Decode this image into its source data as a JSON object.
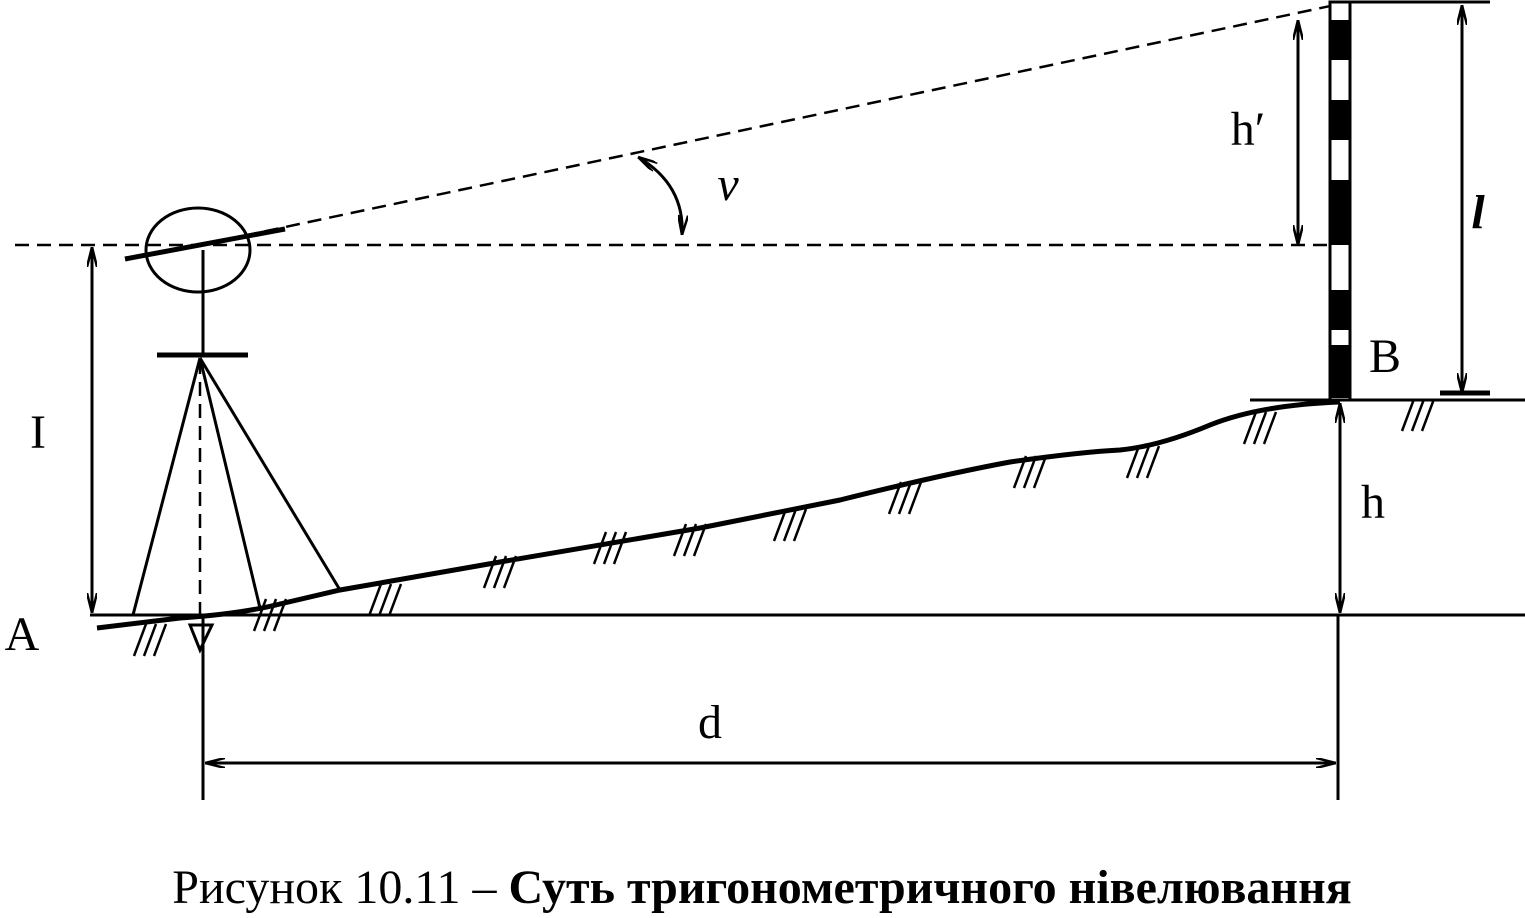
{
  "labels": {
    "h_prime": "h′",
    "nu": "ν",
    "l": "l",
    "B": "B",
    "I": "I",
    "A": "A",
    "h": "h",
    "d": "d"
  },
  "caption": {
    "prefix": "Рисунок 10.11 – ",
    "title": "Суть тригонометричного нівелювання"
  }
}
